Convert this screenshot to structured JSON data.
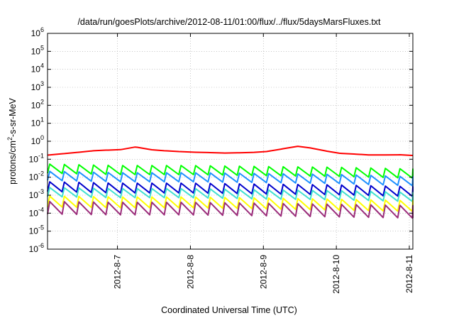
{
  "chart_data": {
    "type": "line",
    "title": "/data/run/goesPlots/archive/2012-08-11/01:00/flux/../flux/5daysMarsFluxes.txt",
    "xlabel": "Coordinated Universal Time (UTC)",
    "ylabel_parts": {
      "pre": "protons/cm",
      "sup": "2",
      "post": "-s-sr-MeV"
    },
    "yscale": "log",
    "ylim_exponents": [
      -6,
      6
    ],
    "y_tick_base": "10",
    "y_tick_exponents": [
      "-6",
      "-5",
      "-4",
      "-3",
      "-2",
      "-1",
      "0",
      "1",
      "2",
      "3",
      "4",
      "5",
      "6"
    ],
    "xlim": [
      "2012-08-06 01:00",
      "2012-08-11 01:10"
    ],
    "x_ticks": [
      {
        "label": "2012-8-7",
        "x": "2012-08-07 00:00"
      },
      {
        "label": "2012-8-8",
        "x": "2012-08-08 00:00"
      },
      {
        "label": "2012-8-9",
        "x": "2012-08-09 00:00"
      },
      {
        "label": "2012-8-10",
        "x": "2012-08-10 00:00"
      },
      {
        "label": "2012-8-11",
        "x": "2012-08-11 00:00"
      }
    ],
    "grid": true,
    "legend": "none",
    "sawtooth_period_hours": 4.8,
    "series": [
      {
        "color": "#ff0000",
        "points": [
          [
            "2012-08-06 01:00",
            0.17
          ],
          [
            "2012-08-06 12:00",
            0.25
          ],
          [
            "2012-08-06 18:00",
            0.32
          ],
          [
            "2012-08-07 00:00",
            0.32
          ],
          [
            "2012-08-07 06:00",
            0.48
          ],
          [
            "2012-08-07 12:00",
            0.32
          ],
          [
            "2012-08-07 18:00",
            0.28
          ],
          [
            "2012-08-08 00:00",
            0.25
          ],
          [
            "2012-08-08 12:00",
            0.22
          ],
          [
            "2012-08-09 00:00",
            0.25
          ],
          [
            "2012-08-09 12:00",
            0.55
          ],
          [
            "2012-08-09 18:00",
            0.35
          ],
          [
            "2012-08-10 00:00",
            0.22
          ],
          [
            "2012-08-10 12:00",
            0.17
          ],
          [
            "2012-08-11 00:00",
            0.18
          ],
          [
            "2012-08-11 01:10",
            0.16
          ]
        ]
      },
      {
        "color": "#00ff00",
        "points": [
          [
            "2012-08-06 01:00",
            0.03
          ],
          [
            "2012-08-07 00:00",
            0.025
          ],
          [
            "2012-08-08 00:00",
            0.025
          ],
          [
            "2012-08-09 00:00",
            0.022
          ],
          [
            "2012-08-10 00:00",
            0.02
          ],
          [
            "2012-08-11 01:10",
            0.016
          ]
        ]
      },
      {
        "color": "#1e90ff",
        "points": [
          [
            "2012-08-06 01:00",
            0.012
          ],
          [
            "2012-08-07 00:00",
            0.01
          ],
          [
            "2012-08-08 00:00",
            0.01
          ],
          [
            "2012-08-09 00:00",
            0.009
          ],
          [
            "2012-08-10 00:00",
            0.008
          ],
          [
            "2012-08-11 01:10",
            0.006
          ]
        ]
      },
      {
        "color": "#0000cd",
        "points": [
          [
            "2012-08-06 01:00",
            0.003
          ],
          [
            "2012-08-07 00:00",
            0.0025
          ],
          [
            "2012-08-08 00:00",
            0.0025
          ],
          [
            "2012-08-09 00:00",
            0.0022
          ],
          [
            "2012-08-10 00:00",
            0.002
          ],
          [
            "2012-08-11 01:10",
            0.0016
          ]
        ]
      },
      {
        "color": "#40e0d0",
        "points": [
          [
            "2012-08-06 01:00",
            0.0015
          ],
          [
            "2012-08-07 00:00",
            0.0013
          ],
          [
            "2012-08-08 00:00",
            0.0013
          ],
          [
            "2012-08-09 00:00",
            0.0011
          ],
          [
            "2012-08-10 00:00",
            0.001
          ],
          [
            "2012-08-11 01:10",
            0.0008
          ]
        ]
      },
      {
        "color": "#ffff00",
        "points": [
          [
            "2012-08-06 01:00",
            0.00045
          ],
          [
            "2012-08-07 00:00",
            0.0004
          ],
          [
            "2012-08-08 00:00",
            0.0004
          ],
          [
            "2012-08-09 00:00",
            0.00035
          ],
          [
            "2012-08-10 00:00",
            0.0003
          ],
          [
            "2012-08-11 01:10",
            0.00025
          ]
        ]
      },
      {
        "color": "#9b2d7b",
        "points": [
          [
            "2012-08-06 01:00",
            0.0002
          ],
          [
            "2012-08-07 00:00",
            0.00018
          ],
          [
            "2012-08-08 00:00",
            0.00018
          ],
          [
            "2012-08-09 00:00",
            0.00016
          ],
          [
            "2012-08-10 00:00",
            0.00014
          ],
          [
            "2012-08-11 01:10",
            0.00012
          ]
        ]
      }
    ],
    "sawtooth_drop_factor": [
      1.0,
      3.2,
      3.2,
      3.5,
      3.2,
      4.0,
      5.0
    ]
  }
}
